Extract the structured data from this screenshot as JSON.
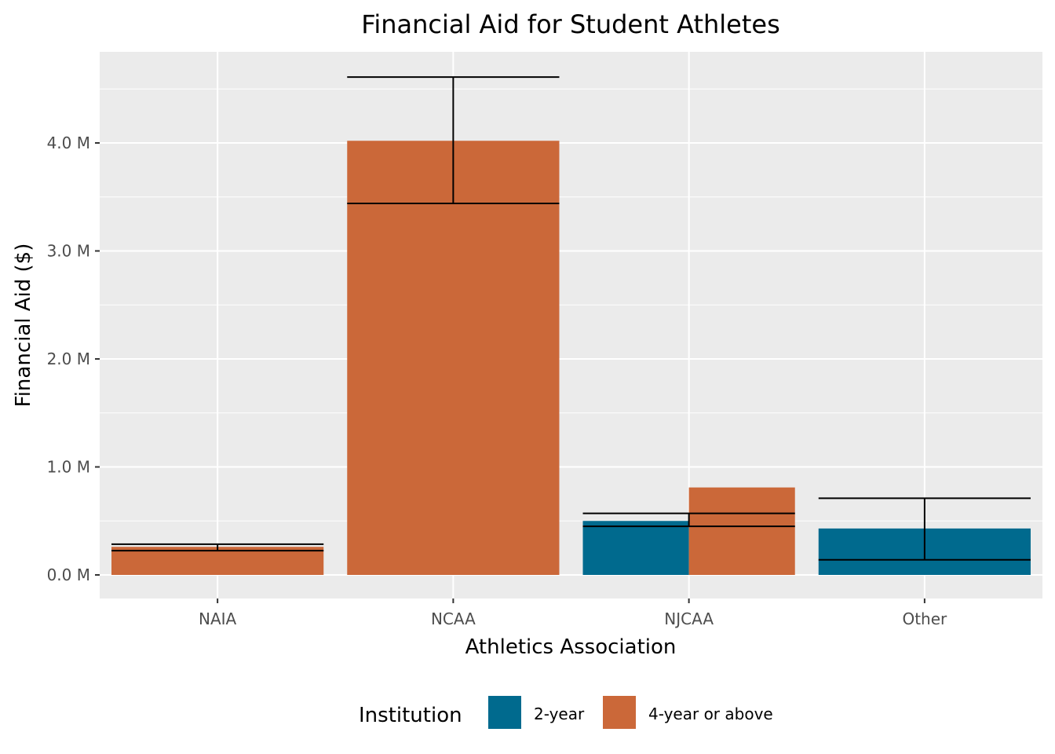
{
  "chart_data": {
    "type": "bar",
    "title": "Financial Aid for Student Athletes",
    "xlabel": "Athletics Association",
    "ylabel": "Financial Aid ($)",
    "categories": [
      "NAIA",
      "NCAA",
      "NJCAA",
      "Other"
    ],
    "y_ticks": [
      {
        "value": 0,
        "label": "0.0 M"
      },
      {
        "value": 1000000,
        "label": "1.0 M"
      },
      {
        "value": 2000000,
        "label": "2.0 M"
      },
      {
        "value": 3000000,
        "label": "3.0 M"
      },
      {
        "value": 4000000,
        "label": "4.0 M"
      }
    ],
    "ylim": [
      -220000,
      4850000
    ],
    "grid": true,
    "bar_mode": "dodge (overlapping error bars)",
    "series": [
      {
        "name": "2-year",
        "color": "#006A8E",
        "values": [
          null,
          null,
          500000,
          430000
        ],
        "error_low": [
          null,
          null,
          450000,
          140000
        ],
        "error_high": [
          null,
          null,
          570000,
          710000
        ]
      },
      {
        "name": "4-year or above",
        "color": "#CB6839",
        "values": [
          260000,
          4020000,
          810000,
          null
        ],
        "error_low": [
          225000,
          3440000,
          null,
          null
        ],
        "error_high": [
          285000,
          4610000,
          null,
          null
        ]
      }
    ],
    "legend": {
      "title": "Institution",
      "position": "bottom"
    }
  }
}
